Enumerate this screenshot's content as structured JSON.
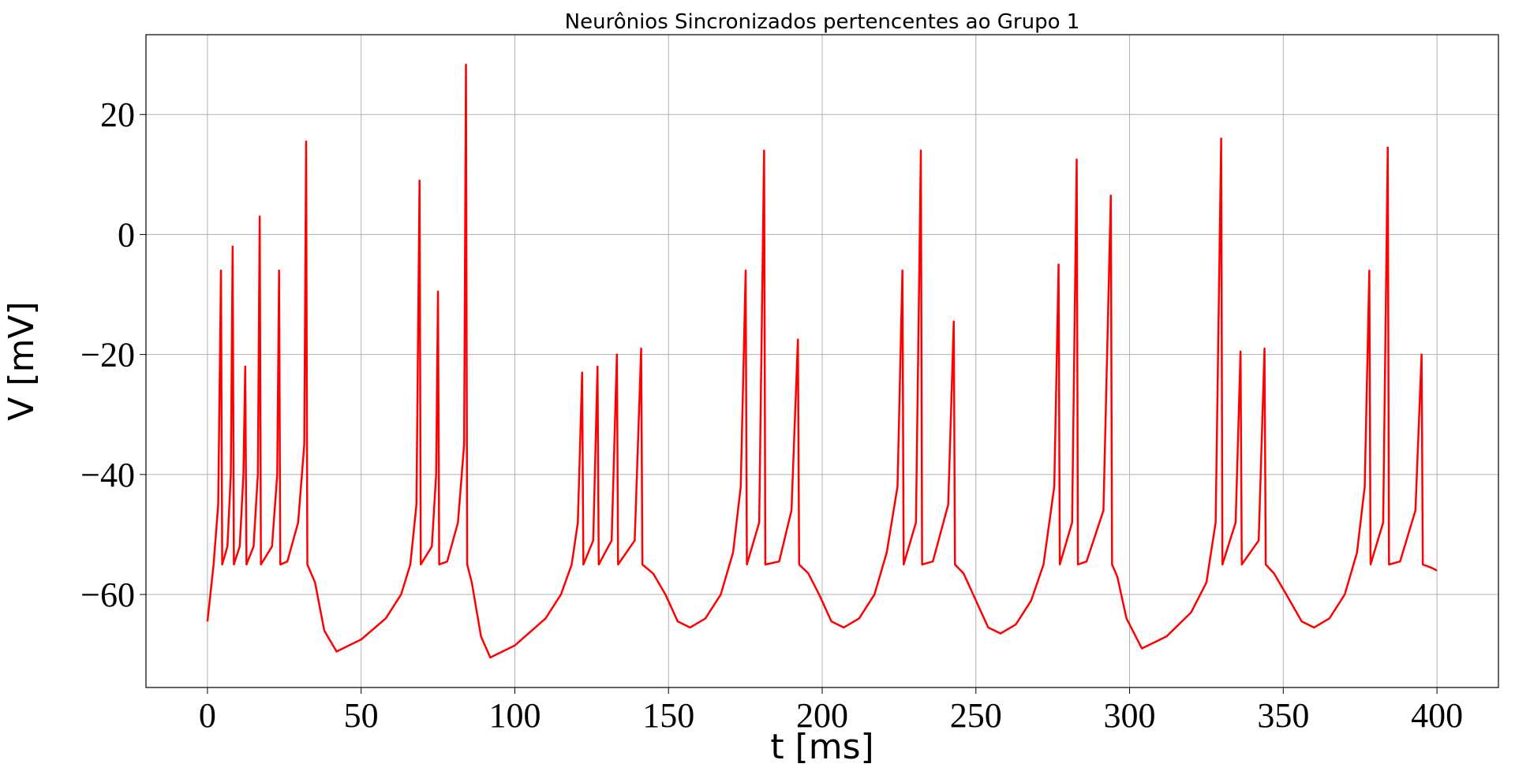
{
  "chart_data": {
    "type": "line",
    "title": "Neurônios Sincronizados pertencentes ao Grupo 1",
    "xlabel": "t [ms]",
    "ylabel": "V [mV]",
    "color": "#ff0000",
    "grid": true,
    "xlim": [
      -20,
      420
    ],
    "ylim": [
      -75.5,
      33.3
    ],
    "xticks": [
      0,
      50,
      100,
      150,
      200,
      250,
      300,
      350,
      400
    ],
    "yticks": [
      {
        "value": -60,
        "label": "−60"
      },
      {
        "value": -40,
        "label": "−40"
      },
      {
        "value": -20,
        "label": "−20"
      },
      0,
      20
    ],
    "x": [
      0,
      2,
      3.5,
      4.4,
      4.8,
      6.5,
      7.6,
      8.2,
      8.6,
      10.5,
      11.7,
      12.3,
      12.7,
      15,
      16.4,
      17,
      17.4,
      21,
      22.7,
      23.3,
      23.7,
      26,
      29.5,
      31.5,
      32.1,
      32.5,
      35,
      38,
      42,
      50,
      58,
      63,
      66,
      68,
      69,
      69.4,
      73,
      74.4,
      75,
      75.4,
      78,
      81.5,
      83.5,
      84.1,
      84.5,
      86,
      89,
      92,
      100,
      110,
      115,
      118.5,
      120.5,
      121.9,
      122.3,
      125.5,
      126.9,
      127.3,
      131.5,
      133.2,
      133.6,
      139,
      141.1,
      141.5,
      145,
      149,
      153,
      157,
      162,
      167,
      171,
      173.5,
      175.1,
      175.5,
      179.5,
      181.1,
      181.5,
      186,
      190,
      192.1,
      192.5,
      195.5,
      199,
      203,
      207,
      212,
      217,
      221,
      224.5,
      226.1,
      226.5,
      230.5,
      232.1,
      232.5,
      236,
      241,
      242.8,
      243.2,
      246,
      250,
      254,
      258,
      263,
      268,
      272,
      275.5,
      276.9,
      277.3,
      281.3,
      282.8,
      283.2,
      286,
      291.5,
      293.9,
      294.3,
      296,
      299,
      304,
      312,
      320,
      325,
      328,
      329.8,
      330.2,
      334.5,
      336.1,
      336.5,
      342,
      343.9,
      344.3,
      347,
      351,
      356,
      360,
      365,
      370,
      374,
      376.5,
      378,
      378.4,
      382.5,
      384,
      384.4,
      388,
      393,
      395,
      395.4,
      398,
      400
    ],
    "values": [
      -64.5,
      -55,
      -45,
      -6,
      -55,
      -52,
      -40,
      -2,
      -55,
      -52,
      -40,
      -22,
      -55,
      -52,
      -40,
      3,
      -55,
      -52,
      -40,
      -6,
      -55,
      -54.5,
      -48,
      -35,
      15.5,
      -55,
      -58,
      -66,
      -69.5,
      -67.5,
      -64,
      -60,
      -55,
      -45,
      9,
      -55,
      -52,
      -40,
      -9.5,
      -55,
      -54.5,
      -48,
      -35,
      28.3,
      -55,
      -58,
      -67,
      -70.5,
      -68.5,
      -64,
      -60,
      -55,
      -48,
      -23,
      -55,
      -51,
      -22,
      -55,
      -51,
      -20,
      -55,
      -51,
      -19,
      -55,
      -56.5,
      -60,
      -64.5,
      -65.5,
      -64,
      -60,
      -53,
      -42,
      -6,
      -55,
      -48,
      14,
      -55,
      -54.5,
      -46,
      -17.5,
      -55,
      -56.5,
      -60,
      -64.5,
      -65.5,
      -64,
      -60,
      -53,
      -42,
      -6,
      -55,
      -48,
      14,
      -55,
      -54.5,
      -45,
      -14.5,
      -55,
      -56.5,
      -61,
      -65.5,
      -66.5,
      -65,
      -61,
      -55,
      -42,
      -5,
      -55,
      -48,
      12.5,
      -55,
      -54.5,
      -46,
      6.5,
      -55,
      -57,
      -64,
      -69,
      -67,
      -63,
      -58,
      -48,
      16,
      -55,
      -48,
      -19.5,
      -55,
      -51,
      -19,
      -55,
      -56.5,
      -60,
      -64.5,
      -65.5,
      -64,
      -60,
      -53,
      -42,
      -6,
      -55,
      -48,
      14.5,
      -55,
      -54.5,
      -46,
      -20,
      -55,
      -55.5,
      -56
    ]
  }
}
